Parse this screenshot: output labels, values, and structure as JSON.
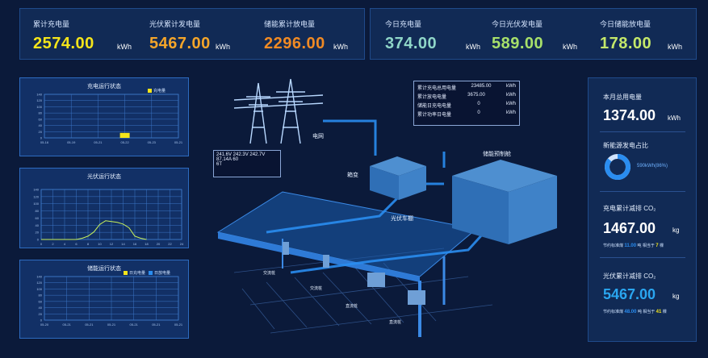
{
  "top_stats_left": [
    {
      "label": "累计充电量",
      "value": "2574.00",
      "unit": "kWh",
      "color": "#f5e51a"
    },
    {
      "label": "光伏累计发电量",
      "value": "5467.00",
      "unit": "kWh",
      "color": "#f4a52a"
    },
    {
      "label": "储能累计放电量",
      "value": "2296.00",
      "unit": "kWh",
      "color": "#f08a24"
    }
  ],
  "top_stats_right": [
    {
      "label": "今日充电量",
      "value": "374.00",
      "unit": "kWh",
      "color": "#8fd6c8"
    },
    {
      "label": "今日光伏发电量",
      "value": "589.00",
      "unit": "kWh",
      "color": "#a7e06a"
    },
    {
      "label": "今日储能放电量",
      "value": "178.00",
      "unit": "kWh",
      "color": "#c4e86a"
    }
  ],
  "charts": {
    "charging": {
      "title": "充电运行状态",
      "legend": "充电量",
      "legend_color": "#f5e51a",
      "yticks": [
        "140",
        "120",
        "100",
        "80",
        "60",
        "40",
        "20",
        "0"
      ],
      "xticks": [
        "05-16",
        "05-19",
        "05-21",
        "05-22",
        "05-23",
        "05-21"
      ],
      "chart_data": {
        "type": "bar",
        "categories": [
          "05-16",
          "05-19",
          "05-21",
          "05-22",
          "05-23",
          "05-21"
        ],
        "values": [
          0,
          0,
          0,
          16,
          0,
          0
        ],
        "ylim": [
          0,
          140
        ]
      }
    },
    "pv": {
      "title": "光伏运行状态",
      "yticks": [
        "140",
        "120",
        "100",
        "80",
        "60",
        "40",
        "20",
        "0"
      ],
      "xticks": [
        "0",
        "2",
        "4",
        "6",
        "8",
        "10",
        "12",
        "14",
        "16",
        "18",
        "20",
        "22",
        "24"
      ],
      "chart_data": {
        "type": "line",
        "x": [
          0,
          4,
          6,
          7,
          8,
          9,
          10,
          11,
          12,
          13,
          14,
          15,
          16,
          17,
          18
        ],
        "values": [
          0,
          0,
          0,
          3,
          8,
          18,
          36,
          45,
          43,
          41,
          37,
          28,
          8,
          3,
          0
        ],
        "ylim": [
          0,
          120
        ]
      }
    },
    "storage": {
      "title": "储能运行状态",
      "legend_a": "日充电量",
      "legend_b": "日放电量",
      "color_a": "#f5e51a",
      "color_b": "#2a8df0",
      "yticks": [
        "140",
        "120",
        "100",
        "80",
        "60",
        "40",
        "20",
        "0"
      ],
      "xticks": [
        "05-20",
        "05-21",
        "05-21",
        "05-21",
        "05-21",
        "05-21",
        "05-21"
      ],
      "chart_data": {
        "type": "bar",
        "categories": [
          "05-20",
          "05-21",
          "05-21",
          "05-21",
          "05-21",
          "05-21",
          "05-21"
        ],
        "series": [
          {
            "name": "日充电量",
            "values": [
              0,
              0,
              0,
              0,
              0,
              0,
              0
            ]
          },
          {
            "name": "日放电量",
            "values": [
              0,
              0,
              0,
              0,
              0,
              0,
              0
            ]
          }
        ],
        "ylim": [
          0,
          140
        ]
      }
    }
  },
  "scene": {
    "grid_label": "电网",
    "transformer_label": "箱变",
    "pv_carport_label": "光伏车棚",
    "storage_label": "储能预制舱",
    "charger_a": "交流桩",
    "charger_b": "交流桩",
    "charger_c": "直流桩",
    "charger_d": "直流桩",
    "grid_info": [
      "241.6V 242.3V 242.7V",
      "87.14A 60",
      "6T"
    ],
    "storage_info": [
      {
        "k": "累计充电总用电量",
        "v": "23485.00",
        "u": "kWh"
      },
      {
        "k": "累计放电电量",
        "v": "3675.00",
        "u": "kWh"
      },
      {
        "k": "储能日充电电量",
        "v": "0",
        "u": "kWh"
      },
      {
        "k": "累计功率日电量",
        "v": "0",
        "u": "kWh"
      }
    ]
  },
  "right": {
    "online_label": "本月总用电量",
    "online_value": "1374.00",
    "online_unit": "kWh",
    "ratio_label": "新能源发电占比",
    "ratio_text": "590kWh(86%)",
    "ratio_fraction": 0.86,
    "co2_charge_label": "充电累计减排 CO₂",
    "co2_charge_value": "1467.00",
    "co2_charge_unit": "kg",
    "co2_charge_sub1": "节约标准煤",
    "co2_charge_sub1_val": "11.00",
    "co2_charge_sub1_unit": "吨",
    "co2_charge_sub2": "相当于",
    "co2_charge_sub2_val": "7",
    "co2_charge_sub2_unit": "棵",
    "co2_pv_label": "光伏累计减排 CO₂",
    "co2_pv_value": "5467.00",
    "co2_pv_unit": "kg",
    "co2_pv_sub1": "节约标准煤",
    "co2_pv_sub1_val": "48.00",
    "co2_pv_sub1_unit": "吨",
    "co2_pv_sub2": "相当于",
    "co2_pv_sub2_val": "41",
    "co2_pv_sub2_unit": "棵"
  }
}
